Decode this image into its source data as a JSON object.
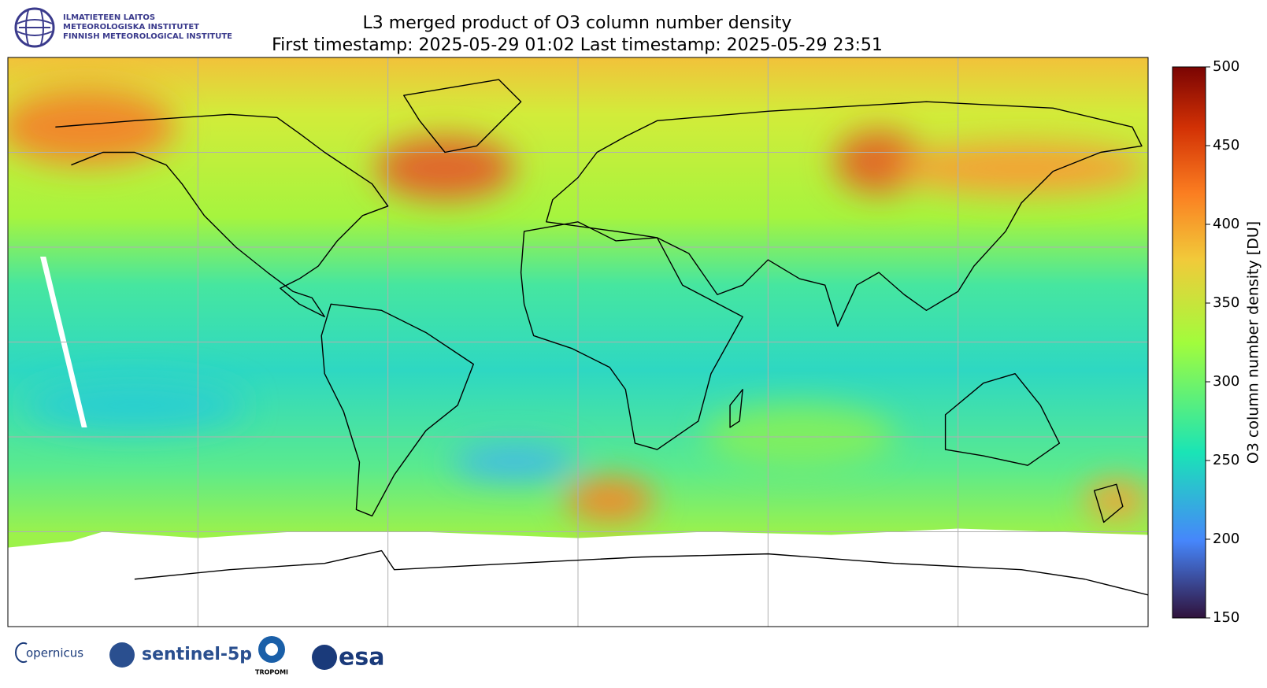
{
  "header": {
    "logo_lines": [
      "ILMATIETEEN LAITOS",
      "METEOROLOGISKA INSTITUTET",
      "FINNISH METEOROLOGICAL INSTITUTE"
    ],
    "title": "L3 merged product of O3 column number density",
    "subtitle": "First timestamp: 2025-05-29 01:02   Last timestamp: 2025-05-29 23:51"
  },
  "colorbar": {
    "label": "O3 column number density [DU]",
    "lim": [
      150,
      500
    ],
    "ticks": [
      150,
      200,
      250,
      300,
      350,
      400,
      450,
      500
    ]
  },
  "footer": {
    "logos": [
      "opernicus",
      "sentinel-5p",
      "TROPOMI",
      "esa"
    ]
  }
}
